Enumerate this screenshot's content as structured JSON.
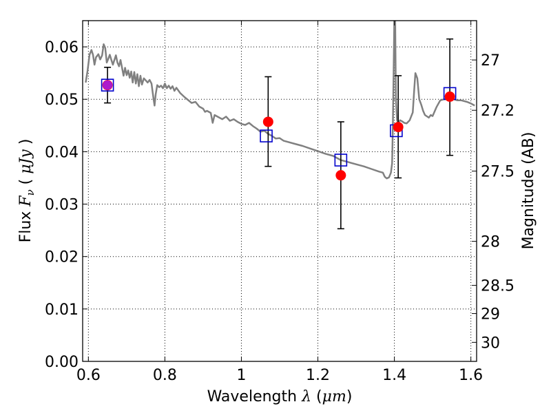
{
  "chart_data": {
    "type": "scatter",
    "xlim": [
      0.585,
      1.615
    ],
    "ylim": [
      0.0,
      0.065
    ],
    "grid": true,
    "xlabel": {
      "text": "Wavelength",
      "symbol": "λ",
      "open": "(",
      "unit": "μm",
      "close": ")"
    },
    "ylabel": {
      "text": "Flux",
      "symbol": "F",
      "subscript": "ν",
      "open": "(",
      "unit": "μJy",
      "close": ")"
    },
    "y2label": "Magnitude (AB)",
    "x_ticks": [
      {
        "v": 0.6,
        "label": "0.6"
      },
      {
        "v": 0.8,
        "label": "0.8"
      },
      {
        "v": 1.0,
        "label": "1"
      },
      {
        "v": 1.2,
        "label": "1.2"
      },
      {
        "v": 1.4,
        "label": "1.4"
      },
      {
        "v": 1.6,
        "label": "1.6"
      }
    ],
    "y_ticks": [
      {
        "v": 0.0,
        "label": "0.00"
      },
      {
        "v": 0.01,
        "label": "0.01"
      },
      {
        "v": 0.02,
        "label": "0.02"
      },
      {
        "v": 0.03,
        "label": "0.03"
      },
      {
        "v": 0.04,
        "label": "0.04"
      },
      {
        "v": 0.05,
        "label": "0.05"
      },
      {
        "v": 0.06,
        "label": "0.06"
      }
    ],
    "y2_ticks": [
      {
        "flux": 0.0575,
        "label": "27"
      },
      {
        "flux": 0.0479,
        "label": "27.2"
      },
      {
        "flux": 0.0363,
        "label": "27.5"
      },
      {
        "flux": 0.0229,
        "label": "28"
      },
      {
        "flux": 0.0145,
        "label": "28.5"
      },
      {
        "flux": 0.00912,
        "label": "29"
      },
      {
        "flux": 0.00363,
        "label": "30"
      }
    ],
    "model_spectrum": {
      "color": "#808080",
      "points": [
        [
          0.593,
          0.0532
        ],
        [
          0.598,
          0.0555
        ],
        [
          0.603,
          0.0585
        ],
        [
          0.608,
          0.0594
        ],
        [
          0.612,
          0.0585
        ],
        [
          0.616,
          0.0566
        ],
        [
          0.62,
          0.058
        ],
        [
          0.626,
          0.0586
        ],
        [
          0.631,
          0.0576
        ],
        [
          0.636,
          0.0584
        ],
        [
          0.64,
          0.0605
        ],
        [
          0.644,
          0.0598
        ],
        [
          0.648,
          0.057
        ],
        [
          0.652,
          0.0577
        ],
        [
          0.656,
          0.0585
        ],
        [
          0.66,
          0.0575
        ],
        [
          0.664,
          0.0566
        ],
        [
          0.668,
          0.0575
        ],
        [
          0.672,
          0.0584
        ],
        [
          0.676,
          0.057
        ],
        [
          0.68,
          0.0563
        ],
        [
          0.684,
          0.0575
        ],
        [
          0.688,
          0.056
        ],
        [
          0.692,
          0.0545
        ],
        [
          0.696,
          0.056
        ],
        [
          0.7,
          0.0546
        ],
        [
          0.704,
          0.0555
        ],
        [
          0.708,
          0.0541
        ],
        [
          0.712,
          0.0553
        ],
        [
          0.716,
          0.0532
        ],
        [
          0.72,
          0.0552
        ],
        [
          0.724,
          0.053
        ],
        [
          0.728,
          0.0548
        ],
        [
          0.732,
          0.0525
        ],
        [
          0.736,
          0.0545
        ],
        [
          0.74,
          0.0528
        ],
        [
          0.745,
          0.054
        ],
        [
          0.75,
          0.0536
        ],
        [
          0.755,
          0.0532
        ],
        [
          0.76,
          0.0537
        ],
        [
          0.765,
          0.053
        ],
        [
          0.77,
          0.0503
        ],
        [
          0.773,
          0.0488
        ],
        [
          0.776,
          0.051
        ],
        [
          0.78,
          0.0527
        ],
        [
          0.785,
          0.0523
        ],
        [
          0.79,
          0.0526
        ],
        [
          0.795,
          0.0521
        ],
        [
          0.8,
          0.053
        ],
        [
          0.805,
          0.0521
        ],
        [
          0.81,
          0.0526
        ],
        [
          0.815,
          0.052
        ],
        [
          0.82,
          0.0525
        ],
        [
          0.825,
          0.0516
        ],
        [
          0.83,
          0.0522
        ],
        [
          0.84,
          0.0512
        ],
        [
          0.85,
          0.0505
        ],
        [
          0.86,
          0.0499
        ],
        [
          0.87,
          0.0493
        ],
        [
          0.88,
          0.0495
        ],
        [
          0.89,
          0.0486
        ],
        [
          0.9,
          0.0482
        ],
        [
          0.905,
          0.0476
        ],
        [
          0.91,
          0.0478
        ],
        [
          0.92,
          0.0474
        ],
        [
          0.925,
          0.0455
        ],
        [
          0.93,
          0.047
        ],
        [
          0.94,
          0.0466
        ],
        [
          0.95,
          0.0462
        ],
        [
          0.96,
          0.0467
        ],
        [
          0.97,
          0.0459
        ],
        [
          0.98,
          0.0462
        ],
        [
          0.99,
          0.0457
        ],
        [
          1.0,
          0.0453
        ],
        [
          1.01,
          0.0451
        ],
        [
          1.02,
          0.0455
        ],
        [
          1.03,
          0.0449
        ],
        [
          1.04,
          0.0444
        ],
        [
          1.05,
          0.0438
        ],
        [
          1.06,
          0.044
        ],
        [
          1.07,
          0.0434
        ],
        [
          1.08,
          0.043
        ],
        [
          1.09,
          0.0425
        ],
        [
          1.1,
          0.0426
        ],
        [
          1.11,
          0.0421
        ],
        [
          1.12,
          0.0419
        ],
        [
          1.14,
          0.0415
        ],
        [
          1.16,
          0.0411
        ],
        [
          1.18,
          0.0406
        ],
        [
          1.2,
          0.0401
        ],
        [
          1.22,
          0.0396
        ],
        [
          1.24,
          0.0392
        ],
        [
          1.26,
          0.0384
        ],
        [
          1.28,
          0.038
        ],
        [
          1.3,
          0.0376
        ],
        [
          1.32,
          0.0372
        ],
        [
          1.34,
          0.0367
        ],
        [
          1.36,
          0.0362
        ],
        [
          1.37,
          0.036
        ],
        [
          1.375,
          0.0352
        ],
        [
          1.38,
          0.0349
        ],
        [
          1.386,
          0.0351
        ],
        [
          1.391,
          0.036
        ],
        [
          1.394,
          0.0378
        ],
        [
          1.396,
          0.045
        ],
        [
          1.398,
          0.055
        ],
        [
          1.4,
          0.066
        ],
        [
          1.402,
          0.066
        ],
        [
          1.404,
          0.05
        ],
        [
          1.407,
          0.046
        ],
        [
          1.41,
          0.0455
        ],
        [
          1.415,
          0.046
        ],
        [
          1.42,
          0.0458
        ],
        [
          1.426,
          0.0455
        ],
        [
          1.432,
          0.0454
        ],
        [
          1.44,
          0.046
        ],
        [
          1.448,
          0.0475
        ],
        [
          1.452,
          0.052
        ],
        [
          1.455,
          0.055
        ],
        [
          1.46,
          0.054
        ],
        [
          1.465,
          0.05
        ],
        [
          1.47,
          0.049
        ],
        [
          1.475,
          0.0478
        ],
        [
          1.48,
          0.047
        ],
        [
          1.49,
          0.0465
        ],
        [
          1.495,
          0.047
        ],
        [
          1.5,
          0.0468
        ],
        [
          1.51,
          0.0485
        ],
        [
          1.52,
          0.0498
        ],
        [
          1.53,
          0.05
        ],
        [
          1.545,
          0.05
        ],
        [
          1.555,
          0.05
        ],
        [
          1.565,
          0.0498
        ],
        [
          1.575,
          0.0498
        ],
        [
          1.59,
          0.0495
        ],
        [
          1.6,
          0.0492
        ],
        [
          1.61,
          0.0488
        ]
      ]
    },
    "synthetic_points": {
      "marker": "open-square",
      "color": "#0000cc",
      "x": [
        0.65,
        1.065,
        1.26,
        1.405,
        1.545
      ],
      "y": [
        0.0527,
        0.043,
        0.0384,
        0.044,
        0.0511
      ]
    },
    "observed_points": {
      "marker": "filled-circle",
      "color": "#ff0000",
      "x": [
        0.65,
        1.07,
        1.26,
        1.41,
        1.545
      ],
      "y": [
        0.0527,
        0.0457,
        0.0355,
        0.0447,
        0.0505
      ],
      "yerr_lo": [
        0.0493,
        0.0372,
        0.0253,
        0.035,
        0.0393
      ],
      "yerr_hi": [
        0.0561,
        0.0543,
        0.0457,
        0.0545,
        0.0615
      ]
    }
  }
}
